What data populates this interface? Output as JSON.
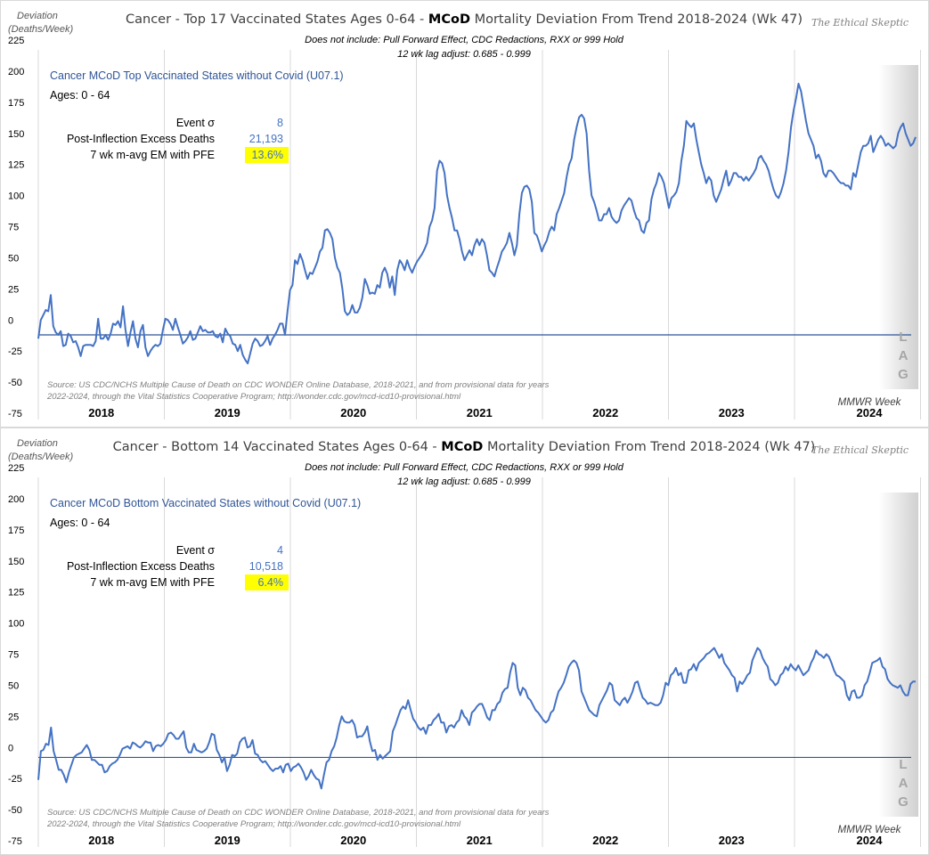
{
  "chart_data": [
    {
      "type": "line",
      "id": "top",
      "title_pre": "Cancer  - Top 17 Vaccinated  States Ages 0-64 - ",
      "title_bold": "MCoD",
      "title_post": " Mortality Deviation  From Trend  2018-2024 (Wk 47)",
      "subtitle1": "Does not include: Pull Forward Effect,  CDC Redactions, RXX or 999 Hold",
      "subtitle2": "12 wk lag adjust: 0.685 - 0.999",
      "brand": "The Ethical Skeptic",
      "ylabel_line1": "Deviation",
      "ylabel_line2": "(Deaths/Week)",
      "xlabel": "MMWR Week",
      "series_label": "Cancer MCoD Top Vaccinated States without Covid (U07.1)",
      "ages": "Ages: 0 - 64",
      "stats": [
        {
          "label": "Event σ",
          "value": "8",
          "highlight": false
        },
        {
          "label": "Post-Inflection Excess Deaths",
          "value": "21,193",
          "highlight": false
        },
        {
          "label": "7 wk m-avg EM with PFE",
          "value": "13.6%",
          "highlight": true
        }
      ],
      "source_line1": "Source: US CDC/NCHS Multiple Cause of Death on CDC WONDER Online Database, 2018-2021, and from provisional data for years",
      "source_line2": "2022-2024, through the Vital Statistics Cooperative Program; http://wonder.cdc.gov/mcd-icd10-provisional.html",
      "lag_letters": [
        "L",
        "A",
        "G"
      ],
      "yticks": [
        225,
        200,
        175,
        150,
        125,
        100,
        75,
        50,
        25,
        0,
        -25,
        -50,
        -75
      ],
      "ylim": [
        -75,
        225
      ],
      "xticks": [
        "2018",
        "2019",
        "2020",
        "2021",
        "2022",
        "2023",
        "2024"
      ],
      "baseline": -12,
      "line_color": "#4472c4",
      "highlight_color": "#ffff00",
      "series": [
        {
          "name": "Deviation",
          "x_start_year": 2018,
          "values": [
            -15,
            0,
            4,
            8,
            7,
            20,
            -5,
            -10,
            -12,
            -9,
            -21,
            -20,
            -11,
            -13,
            -18,
            -17,
            -22,
            -29,
            -21,
            -20,
            -20,
            -20,
            -21,
            -17,
            1,
            -15,
            -15,
            -12,
            -16,
            -11,
            -3,
            -4,
            -1,
            -6,
            11,
            -8,
            -21,
            -10,
            -1,
            -15,
            -22,
            -9,
            -4,
            -22,
            -29,
            -25,
            -22,
            -20,
            -21,
            -19,
            -8,
            1,
            0,
            -3,
            -8,
            1,
            -6,
            -12,
            -19,
            -17,
            -14,
            -9,
            -16,
            -15,
            -10,
            -5,
            -9,
            -8,
            -10,
            -10,
            -9,
            -13,
            -14,
            -11,
            -18,
            -7,
            -11,
            -13,
            -19,
            -20,
            -25,
            -20,
            -28,
            -32,
            -35,
            -27,
            -19,
            -15,
            -17,
            -21,
            -20,
            -17,
            -13,
            -20,
            -15,
            -12,
            -8,
            -3,
            -3,
            -12,
            7,
            24,
            28,
            48,
            45,
            53,
            48,
            40,
            33,
            38,
            37,
            42,
            47,
            55,
            58,
            72,
            73,
            70,
            65,
            50,
            42,
            38,
            25,
            7,
            4,
            6,
            12,
            6,
            6,
            10,
            18,
            33,
            28,
            21,
            22,
            21,
            28,
            26,
            38,
            42,
            37,
            26,
            35,
            20,
            40,
            48,
            45,
            40,
            48,
            42,
            38,
            43,
            47,
            50,
            53,
            57,
            62,
            75,
            80,
            90,
            120,
            128,
            126,
            118,
            100,
            90,
            82,
            72,
            72,
            65,
            55,
            48,
            52,
            56,
            52,
            60,
            65,
            60,
            65,
            62,
            52,
            40,
            38,
            35,
            42,
            48,
            55,
            58,
            62,
            70,
            62,
            52,
            60,
            85,
            102,
            107,
            108,
            105,
            95,
            70,
            68,
            62,
            55,
            60,
            64,
            71,
            75,
            72,
            85,
            90,
            96,
            102,
            115,
            125,
            130,
            145,
            155,
            163,
            165,
            162,
            150,
            120,
            100,
            95,
            88,
            80,
            80,
            85,
            85,
            90,
            83,
            80,
            78,
            80,
            88,
            92,
            95,
            98,
            96,
            88,
            82,
            80,
            72,
            70,
            78,
            80,
            97,
            105,
            110,
            118,
            115,
            110,
            100,
            90,
            98,
            100,
            103,
            110,
            128,
            140,
            160,
            157,
            155,
            158,
            145,
            135,
            125,
            118,
            110,
            115,
            112,
            100,
            95,
            100,
            105,
            113,
            120,
            108,
            112,
            118,
            118,
            115,
            115,
            112,
            115,
            112,
            115,
            118,
            122,
            130,
            132,
            128,
            125,
            120,
            112,
            105,
            100,
            98,
            103,
            110,
            120,
            135,
            155,
            168,
            178,
            190,
            184,
            172,
            160,
            150,
            145,
            140,
            130,
            133,
            128,
            118,
            115,
            120,
            120,
            118,
            115,
            112,
            110,
            110,
            108,
            108,
            105,
            118,
            115,
            125,
            135,
            140,
            140,
            142,
            148,
            135,
            140,
            145,
            148,
            145,
            140,
            142,
            140,
            138,
            140,
            150,
            155,
            158,
            150,
            145,
            140,
            142,
            147
          ]
        }
      ]
    },
    {
      "type": "line",
      "id": "bottom",
      "title_pre": "Cancer  - Bottom 14 Vaccinated States Ages 0-64 - ",
      "title_bold": "MCoD",
      "title_post": " Mortality Deviation  From Trend  2018-2024 (Wk 47)",
      "subtitle1": "Does not include: Pull Forward Effect,  CDC Redactions, RXX or 999 Hold",
      "subtitle2": "12 wk lag adjust: 0.685 - 0.999",
      "brand": "The Ethical Skeptic",
      "ylabel_line1": "Deviation",
      "ylabel_line2": "(Deaths/Week)",
      "xlabel": "MMWR Week",
      "series_label": "Cancer MCoD Bottom Vaccinated States without Covid (U07.1)",
      "ages": "Ages: 0 - 64",
      "stats": [
        {
          "label": "Event σ",
          "value": "4",
          "highlight": false
        },
        {
          "label": "Post-Inflection Excess Deaths",
          "value": "10,518",
          "highlight": false
        },
        {
          "label": "7 wk m-avg EM with PFE",
          "value": "6.4%",
          "highlight": true
        }
      ],
      "source_line1": "Source: US CDC/NCHS Multiple Cause of Death on CDC WONDER Online Database, 2018-2021, and from provisional data for years",
      "source_line2": "2022-2024, through the Vital Statistics Cooperative Program; http://wonder.cdc.gov/mcd-icd10-provisional.html",
      "lag_letters": [
        "L",
        "A",
        "G"
      ],
      "yticks": [
        225,
        200,
        175,
        150,
        125,
        100,
        75,
        50,
        25,
        0,
        -25,
        -50,
        -75
      ],
      "ylim": [
        -75,
        225
      ],
      "xticks": [
        "2018",
        "2019",
        "2020",
        "2021",
        "2022",
        "2023",
        "2024"
      ],
      "baseline": -8,
      "line_color": "#4472c4",
      "highlight_color": "#ffff00",
      "series": [
        {
          "name": "Deviation",
          "x_start_year": 2018,
          "values": [
            -26,
            -3,
            -2,
            3,
            2,
            16,
            -3,
            -10,
            -18,
            -18,
            -22,
            -28,
            -20,
            -14,
            -8,
            -6,
            -5,
            -4,
            -1,
            2,
            -2,
            -10,
            -10,
            -12,
            -14,
            -14,
            -20,
            -19,
            -15,
            -13,
            -12,
            -10,
            -6,
            -1,
            0,
            1,
            -1,
            4,
            3,
            1,
            0,
            2,
            5,
            4,
            4,
            -3,
            1,
            2,
            1,
            3,
            6,
            11,
            12,
            10,
            7,
            7,
            10,
            13,
            0,
            -4,
            -4,
            3,
            -2,
            -3,
            -4,
            -3,
            -1,
            4,
            11,
            10,
            -2,
            -6,
            -12,
            -8,
            -19,
            -14,
            -6,
            -7,
            -5,
            4,
            7,
            8,
            0,
            1,
            6,
            -5,
            -6,
            -10,
            -12,
            -11,
            -14,
            -17,
            -19,
            -17,
            -17,
            -15,
            -20,
            -14,
            -13,
            -19,
            -16,
            -15,
            -13,
            -16,
            -20,
            -26,
            -23,
            -18,
            -22,
            -25,
            -26,
            -33,
            -22,
            -12,
            -10,
            -3,
            1,
            8,
            18,
            25,
            21,
            20,
            20,
            22,
            18,
            8,
            9,
            9,
            12,
            17,
            5,
            -3,
            -2,
            -10,
            -6,
            -9,
            -7,
            -5,
            -3,
            13,
            18,
            24,
            30,
            33,
            31,
            38,
            30,
            23,
            20,
            16,
            14,
            16,
            11,
            18,
            18,
            22,
            24,
            27,
            20,
            20,
            12,
            17,
            18,
            16,
            20,
            22,
            30,
            25,
            23,
            18,
            28,
            30,
            33,
            35,
            35,
            30,
            24,
            22,
            30,
            30,
            35,
            37,
            44,
            47,
            48,
            60,
            68,
            66,
            48,
            42,
            48,
            46,
            40,
            38,
            34,
            30,
            28,
            25,
            22,
            20,
            22,
            28,
            30,
            38,
            45,
            48,
            52,
            58,
            65,
            68,
            70,
            68,
            62,
            45,
            40,
            35,
            30,
            28,
            26,
            25,
            34,
            38,
            42,
            46,
            52,
            50,
            38,
            36,
            34,
            38,
            40,
            36,
            40,
            45,
            52,
            53,
            46,
            40,
            38,
            35,
            36,
            35,
            34,
            34,
            36,
            42,
            52,
            50,
            58,
            60,
            64,
            58,
            60,
            52,
            52,
            62,
            63,
            67,
            62,
            68,
            70,
            72,
            75,
            76,
            78,
            80,
            76,
            72,
            75,
            68,
            65,
            62,
            58,
            56,
            45,
            53,
            51,
            54,
            58,
            60,
            70,
            75,
            80,
            78,
            72,
            68,
            65,
            55,
            53,
            50,
            52,
            58,
            60,
            65,
            62,
            67,
            64,
            62,
            66,
            62,
            58,
            60,
            62,
            68,
            72,
            78,
            75,
            74,
            72,
            75,
            73,
            68,
            62,
            58,
            57,
            55,
            53,
            42,
            38,
            45,
            46,
            40,
            40,
            42,
            50,
            53,
            60,
            68,
            69,
            70,
            72,
            65,
            63,
            55,
            52,
            50,
            49,
            48,
            50,
            45,
            42,
            42,
            51,
            53,
            53
          ]
        }
      ]
    }
  ]
}
